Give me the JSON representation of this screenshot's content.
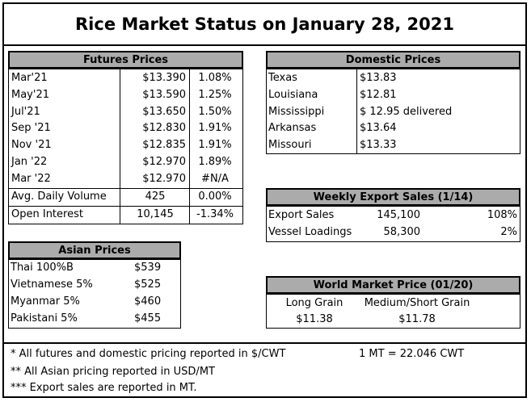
{
  "title": "Rice Market Status on January 28, 2021",
  "futures": {
    "header": "Futures Prices",
    "rows": [
      {
        "contract": "Mar'21",
        "price": "$13.390",
        "change": "1.08%"
      },
      {
        "contract": "May'21",
        "price": "$13.590",
        "change": "1.25%"
      },
      {
        "contract": "Jul'21",
        "price": "$13.650",
        "change": "1.50%"
      },
      {
        "contract": "Sep '21",
        "price": "$12.830",
        "change": "1.91%"
      },
      {
        "contract": "Nov '21",
        "price": "$12.835",
        "change": "1.91%"
      },
      {
        "contract": "Jan '22",
        "price": "$12.970",
        "change": "1.89%"
      },
      {
        "contract": "Mar '22",
        "price": "$12.970",
        "change": "#N/A"
      }
    ],
    "stats": [
      {
        "label": "Avg. Daily Volume",
        "value": "425",
        "change": "0.00%"
      },
      {
        "label": "Open Interest",
        "value": "10,145",
        "change": "-1.34%"
      }
    ]
  },
  "domestic": {
    "header": "Domestic Prices",
    "rows": [
      {
        "state": "Texas",
        "price": "$13.83"
      },
      {
        "state": "Louisiana",
        "price": "$12.81"
      },
      {
        "state": "Mississippi",
        "price": "$ 12.95 delivered"
      },
      {
        "state": "Arkansas",
        "price": "$13.64"
      },
      {
        "state": "Missouri",
        "price": "$13.33"
      }
    ]
  },
  "exports": {
    "header": "Weekly Export Sales (1/14)",
    "rows": [
      {
        "label": "Export Sales",
        "value": "145,100",
        "pct": "108%"
      },
      {
        "label": "Vessel Loadings",
        "value": "58,300",
        "pct": "2%"
      }
    ]
  },
  "asian": {
    "header": "Asian Prices",
    "rows": [
      {
        "label": "Thai 100%B",
        "price": "$539"
      },
      {
        "label": "Vietnamese 5%",
        "price": "$525"
      },
      {
        "label": "Myanmar 5%",
        "price": "$460"
      },
      {
        "label": "Pakistani 5%",
        "price": "$455"
      }
    ]
  },
  "world": {
    "header": "World Market Price (01/20)",
    "long_label": "Long Grain",
    "medium_label": "Medium/Short Grain",
    "long_price": "$11.38",
    "medium_price": "$11.78"
  },
  "notes": {
    "line1": "* All futures and domestic pricing reported in $/CWT",
    "conversion": "1 MT = 22.046 CWT",
    "line2": "** All Asian pricing reported in USD/MT",
    "line3": "*** Export sales are reported in MT."
  }
}
